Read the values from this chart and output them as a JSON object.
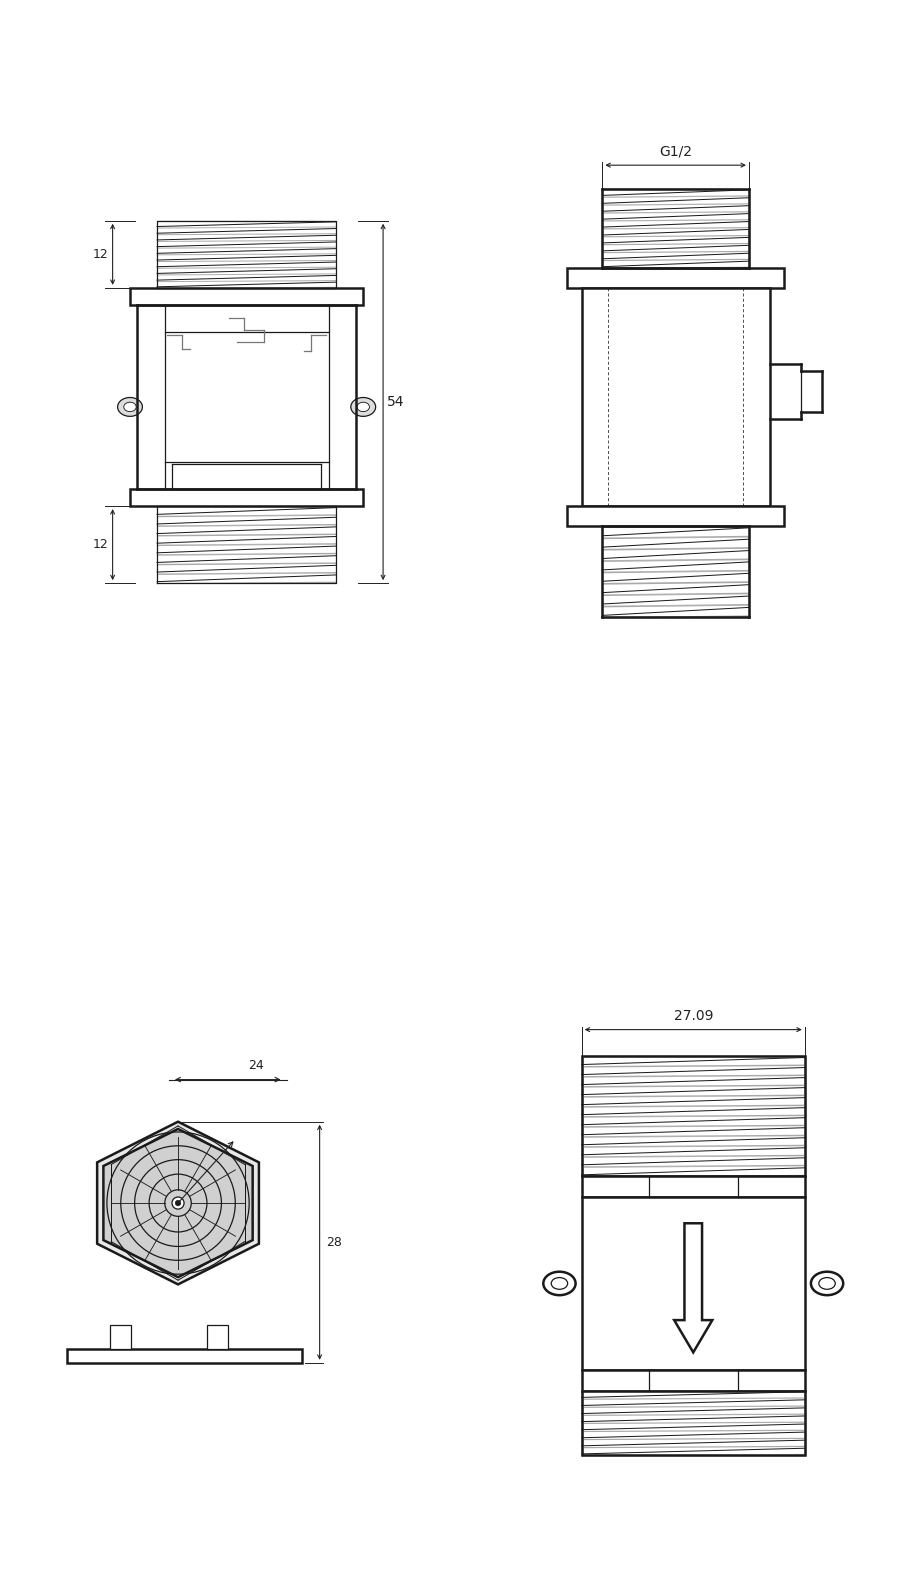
{
  "bg_color": "#ffffff",
  "line_color": "#1a1a1a",
  "dim_color": "#222222",
  "gray_color": "#777777",
  "thread_fill": "#888888",
  "dim_54": "54",
  "dim_12_top": "12",
  "dim_12_bot": "12",
  "dim_G12": "G1/2",
  "dim_2709": "27.09",
  "dim_24": "24",
  "dim_28": "28",
  "figsize": [
    9.17,
    15.88
  ],
  "dpi": 100
}
